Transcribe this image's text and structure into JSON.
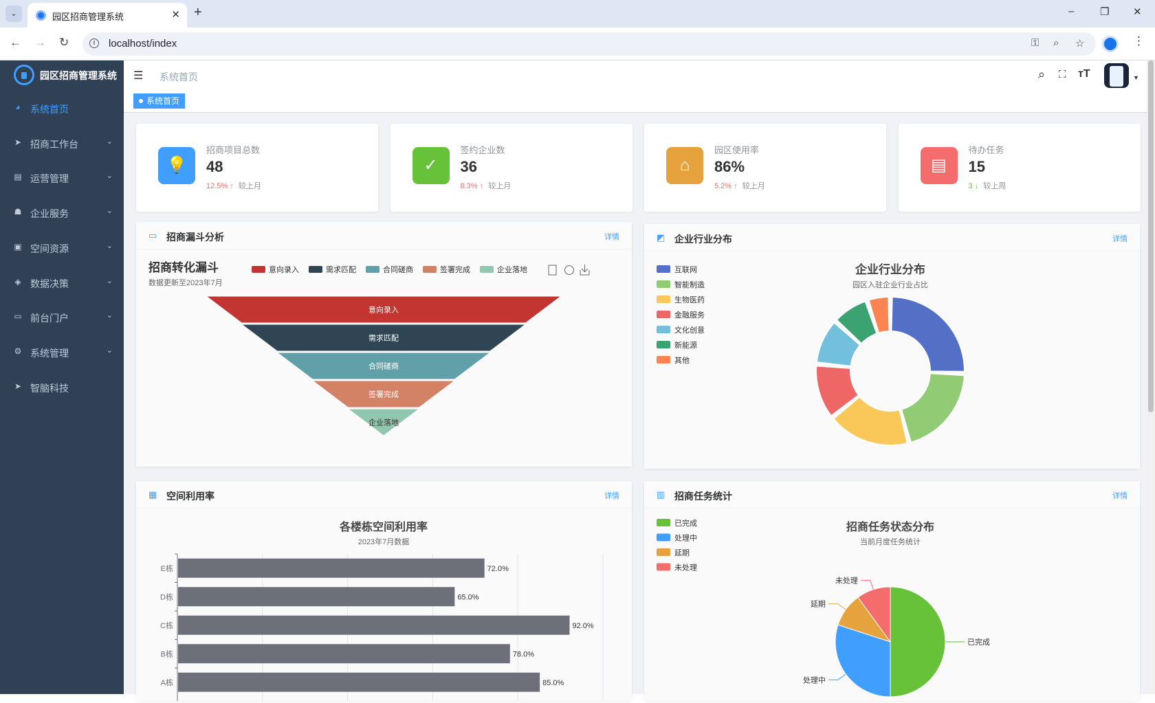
{
  "browser": {
    "tab_title": "园区招商管理系统",
    "url": "localhost/index"
  },
  "app": {
    "title": "园区招商管理系统",
    "breadcrumb": "系统首页",
    "active_tag": "系统首页"
  },
  "sidebar": {
    "items": [
      {
        "label": "系统首页",
        "icon": "dashboard-icon"
      },
      {
        "label": "招商工作台",
        "icon": "send-icon"
      },
      {
        "label": "运营管理",
        "icon": "table-icon"
      },
      {
        "label": "企业服务",
        "icon": "people-icon"
      },
      {
        "label": "空间资源",
        "icon": "qrcode-icon"
      },
      {
        "label": "数据决策",
        "icon": "layers-icon"
      },
      {
        "label": "前台门户",
        "icon": "monitor-icon"
      },
      {
        "label": "系统管理",
        "icon": "gear-icon"
      },
      {
        "label": "智脑科技",
        "icon": "send-icon"
      }
    ]
  },
  "stats": [
    {
      "label": "招商项目总数",
      "value": "48",
      "trend": "12.5%",
      "arrow": "↑",
      "compare": "较上月",
      "color": "#409eff",
      "trend_color": "#f56c6c"
    },
    {
      "label": "签约企业数",
      "value": "36",
      "trend": "8.3%",
      "arrow": "↑",
      "compare": "较上月",
      "color": "#67c23a",
      "trend_color": "#f56c6c"
    },
    {
      "label": "园区使用率",
      "value": "86%",
      "trend": "5.2%",
      "arrow": "↑",
      "compare": "较上月",
      "color": "#e6a23c",
      "trend_color": "#f56c6c"
    },
    {
      "label": "待办任务",
      "value": "15",
      "trend": "3",
      "arrow": "↓",
      "compare": "较上周",
      "color": "#f56c6c",
      "trend_color": "#67c23a"
    }
  ],
  "cards": {
    "funnel": {
      "title": "招商漏斗分析",
      "more": "详情"
    },
    "industry": {
      "title": "企业行业分布",
      "more": "详情"
    },
    "space": {
      "title": "空间利用率",
      "more": "详情"
    },
    "tasks": {
      "title": "招商任务统计",
      "more": "详情"
    }
  },
  "chart_data": [
    {
      "type": "funnel",
      "title": "招商转化漏斗",
      "subtitle": "数据更新至2023年7月",
      "categories": [
        "意向录入",
        "需求匹配",
        "合同磋商",
        "签署完成",
        "企业落地"
      ],
      "values": [
        100,
        80,
        60,
        40,
        20
      ],
      "colors": [
        "#c23531",
        "#2f4554",
        "#61a0a8",
        "#d48265",
        "#91c7ae"
      ]
    },
    {
      "type": "pie",
      "variant": "donut",
      "title": "企业行业分布",
      "subtitle": "园区入驻企业行业占比",
      "categories": [
        "互联网",
        "智能制造",
        "生物医药",
        "金融服务",
        "文化创意",
        "新能源",
        "其他"
      ],
      "values": [
        25,
        20,
        18,
        12,
        10,
        8,
        5
      ],
      "colors": [
        "#5470c6",
        "#91cc75",
        "#fac858",
        "#ee6666",
        "#73c0de",
        "#3ba272",
        "#fc8452"
      ]
    },
    {
      "type": "bar",
      "orientation": "horizontal",
      "title": "各楼栋空间利用率",
      "subtitle": "2023年7月数据",
      "categories": [
        "E栋",
        "D栋",
        "C栋",
        "B栋",
        "A栋"
      ],
      "values": [
        72.0,
        65.0,
        92.0,
        78.0,
        85.0
      ],
      "labels": [
        "72.0%",
        "65.0%",
        "92.0%",
        "78.0%",
        "85.0%"
      ],
      "xlim": [
        0,
        100
      ],
      "color": "#6e7079"
    },
    {
      "type": "pie",
      "title": "招商任务状态分布",
      "subtitle": "当前月度任务统计",
      "categories": [
        "已完成",
        "处理中",
        "延期",
        "未处理"
      ],
      "values": [
        50,
        30,
        10,
        10
      ],
      "colors": [
        "#67c23a",
        "#409eff",
        "#e6a23c",
        "#f56c6c"
      ]
    }
  ]
}
